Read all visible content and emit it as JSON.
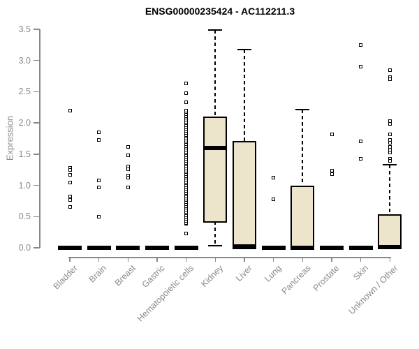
{
  "chart_data": {
    "type": "boxplot",
    "title": "ENSG00000235424 - AC112211.3",
    "ylabel": "Expression",
    "xlabel": "",
    "ylim": [
      0.0,
      3.5
    ],
    "yticks": [
      0.0,
      0.5,
      1.0,
      1.5,
      2.0,
      2.5,
      3.0,
      3.5
    ],
    "grid": "off",
    "legend": "none",
    "categories": [
      "Bladder",
      "Brain",
      "Breast",
      "Gastric",
      "Hematopoietic cells",
      "Kidney",
      "Liver",
      "Lung",
      "Pancreas",
      "Prostate",
      "Skin",
      "Unknown / Other"
    ],
    "boxes": [
      {
        "category": "Bladder",
        "min": 0,
        "q1": 0,
        "median": 0,
        "q3": 0,
        "max": 0,
        "outliers": [
          2.2,
          1.28,
          1.25,
          1.17,
          1.04,
          0.82,
          0.79,
          0.76,
          0.65
        ]
      },
      {
        "category": "Brain",
        "min": 0,
        "q1": 0,
        "median": 0,
        "q3": 0,
        "max": 0,
        "outliers": [
          1.85,
          1.73,
          1.08,
          0.97,
          0.5
        ]
      },
      {
        "category": "Breast",
        "min": 0,
        "q1": 0,
        "median": 0,
        "q3": 0,
        "max": 0,
        "outliers": [
          1.61,
          1.48,
          1.3,
          1.26,
          1.16,
          1.12,
          0.97
        ]
      },
      {
        "category": "Gastric",
        "min": 0,
        "q1": 0,
        "median": 0,
        "q3": 0,
        "max": 0,
        "outliers": []
      },
      {
        "category": "Hematopoietic cells",
        "min": 0,
        "q1": 0,
        "median": 0,
        "q3": 0,
        "max": 0,
        "outliers": [
          0.23,
          0.38,
          0.4,
          0.43,
          0.46,
          0.49,
          0.52,
          0.55,
          0.58,
          0.61,
          0.64,
          0.67,
          0.7,
          0.73,
          0.76,
          0.79,
          0.82,
          0.85,
          0.88,
          0.91,
          0.94,
          0.97,
          1.0,
          1.03,
          1.06,
          1.09,
          1.12,
          1.15,
          1.18,
          1.21,
          1.24,
          1.27,
          1.3,
          1.33,
          1.36,
          1.39,
          1.42,
          1.45,
          1.48,
          1.51,
          1.54,
          1.57,
          1.6,
          1.63,
          1.66,
          1.69,
          1.72,
          1.75,
          1.78,
          1.81,
          1.84,
          1.87,
          1.9,
          1.93,
          1.96,
          1.99,
          2.02,
          2.05,
          2.08,
          2.11,
          2.14,
          2.17,
          2.2,
          2.33,
          2.48,
          2.63
        ]
      },
      {
        "category": "Kidney",
        "min": 0.03,
        "q1": 0.43,
        "median": 1.6,
        "q3": 2.1,
        "max": 3.49,
        "outliers": []
      },
      {
        "category": "Liver",
        "min": 0,
        "q1": 0,
        "median": 0.02,
        "q3": 1.71,
        "max": 3.17,
        "outliers": []
      },
      {
        "category": "Lung",
        "min": 0,
        "q1": 0,
        "median": 0,
        "q3": 0,
        "max": 0,
        "outliers": [
          1.12,
          0.78
        ]
      },
      {
        "category": "Pancreas",
        "min": 0,
        "q1": 0,
        "median": 0,
        "q3": 1.0,
        "max": 2.21,
        "outliers": []
      },
      {
        "category": "Prostate",
        "min": 0,
        "q1": 0,
        "median": 0,
        "q3": 0,
        "max": 0,
        "outliers": [
          1.82,
          1.23,
          1.18
        ]
      },
      {
        "category": "Skin",
        "min": 0,
        "q1": 0,
        "median": 0,
        "q3": 0,
        "max": 0,
        "outliers": [
          3.25,
          2.9,
          1.7,
          1.43
        ]
      },
      {
        "category": "Unknown / Other",
        "min": 0,
        "q1": 0,
        "median": 0.01,
        "q3": 0.54,
        "max": 1.33,
        "outliers": [
          2.84,
          2.73,
          2.7,
          2.03,
          1.98,
          1.82,
          1.73,
          1.68,
          1.62,
          1.57,
          1.52,
          1.42,
          1.39
        ]
      }
    ],
    "colors": {
      "box_fill": "#ece5cc",
      "box_border": "#000000",
      "axis_text": "#8a8a8a",
      "axis_line": "#888888",
      "title_text": "#000000"
    }
  }
}
